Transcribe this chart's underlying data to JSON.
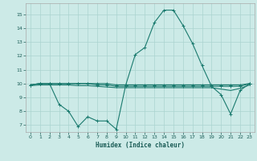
{
  "xlabel": "Humidex (Indice chaleur)",
  "bg_color": "#cceae7",
  "grid_color": "#aad4d0",
  "line_color": "#1a7a6e",
  "xlim": [
    -0.5,
    23.5
  ],
  "ylim": [
    6.5,
    15.8
  ],
  "yticks": [
    7,
    8,
    9,
    10,
    11,
    12,
    13,
    14,
    15
  ],
  "xticks": [
    0,
    1,
    2,
    3,
    4,
    5,
    6,
    7,
    8,
    9,
    10,
    11,
    12,
    13,
    14,
    15,
    16,
    17,
    18,
    19,
    20,
    21,
    22,
    23
  ],
  "series1_x": [
    0,
    1,
    2,
    3,
    4,
    5,
    6,
    7,
    8,
    9,
    10,
    11,
    12,
    13,
    14,
    15,
    16,
    17,
    18,
    19,
    20,
    21,
    22,
    23
  ],
  "series1_y": [
    9.9,
    10.0,
    10.0,
    10.0,
    10.0,
    10.0,
    10.0,
    10.0,
    10.0,
    9.9,
    9.9,
    9.9,
    9.9,
    9.9,
    9.9,
    9.9,
    9.9,
    9.9,
    9.9,
    9.9,
    9.9,
    9.9,
    9.9,
    10.0
  ],
  "series2_x": [
    0,
    1,
    2,
    3,
    4,
    5,
    6,
    7,
    8,
    9,
    10,
    11,
    12,
    13,
    14,
    15,
    16,
    17,
    18,
    19,
    20,
    21,
    22,
    23
  ],
  "series2_y": [
    9.9,
    10.0,
    10.0,
    8.5,
    8.0,
    6.9,
    7.6,
    7.3,
    7.3,
    6.7,
    9.9,
    12.1,
    12.6,
    14.4,
    15.3,
    15.3,
    14.2,
    12.9,
    11.3,
    9.8,
    9.2,
    7.8,
    9.5,
    10.0
  ],
  "series3_x": [
    0,
    1,
    2,
    3,
    4,
    5,
    6,
    7,
    8,
    9,
    10,
    11,
    12,
    13,
    14,
    15,
    16,
    17,
    18,
    19,
    20,
    21,
    22,
    23
  ],
  "series3_y": [
    9.9,
    10.0,
    10.0,
    10.0,
    10.0,
    10.0,
    10.0,
    9.9,
    9.9,
    9.8,
    9.8,
    9.8,
    9.8,
    9.8,
    9.8,
    9.8,
    9.8,
    9.8,
    9.8,
    9.8,
    9.8,
    9.8,
    9.8,
    10.0
  ],
  "series4_x": [
    0,
    1,
    2,
    3,
    4,
    5,
    6,
    7,
    8,
    9,
    10,
    11,
    12,
    13,
    14,
    15,
    16,
    17,
    18,
    19,
    20,
    21,
    22,
    23
  ],
  "series4_y": [
    9.85,
    9.9,
    9.9,
    9.9,
    9.9,
    9.85,
    9.85,
    9.8,
    9.75,
    9.7,
    9.7,
    9.7,
    9.7,
    9.7,
    9.7,
    9.7,
    9.7,
    9.7,
    9.7,
    9.7,
    9.6,
    9.5,
    9.65,
    9.9
  ]
}
